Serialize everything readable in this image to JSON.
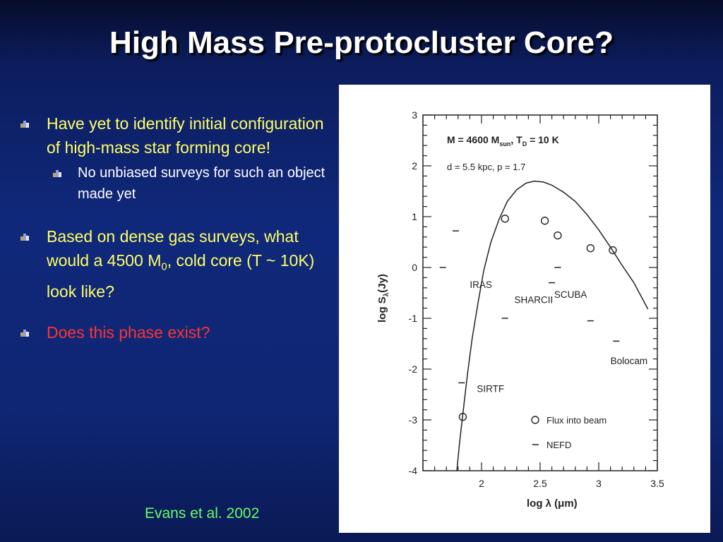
{
  "slide": {
    "title": "High Mass Pre-protocluster Core?",
    "bullets": [
      {
        "text": "Have yet to identify initial configuration of high-mass star forming core!",
        "level": 1,
        "color": "#ffff66"
      },
      {
        "text": "No unbiased surveys for such an object made yet",
        "level": 2,
        "color": "#ffffff"
      },
      {
        "text_before": "Based on dense gas surveys, what would a 4500 M",
        "subscript": "0",
        "text_after": ", cold core (T ~ 10K) look like?",
        "level": 1,
        "color": "#ffff66"
      },
      {
        "text": "Does this phase exist?",
        "level": 1,
        "color": "#ff3333"
      }
    ],
    "citation": "Evans et al. 2002",
    "citation_color": "#66ff66"
  },
  "chart_data": {
    "type": "scatter",
    "title_line1": {
      "m": "M = 4600 M",
      "m_sub": "sun",
      "t": ", T",
      "t_sub": "D",
      "rest": " = 10 K"
    },
    "title_line2": "d = 5.5 kpc, p = 1.7",
    "xlabel": "log λ (μm)",
    "ylabel": "log S",
    "ylabel_sub": "λ",
    "ylabel_unit": "(Jy)",
    "xlim": [
      1.5,
      3.5
    ],
    "ylim": [
      -4,
      3
    ],
    "xticks": [
      "2",
      "2.5",
      "3",
      "3.5"
    ],
    "yticks": [
      "3",
      "2",
      "1",
      "0",
      "-1",
      "-2",
      "-3",
      "-4"
    ],
    "series": [
      {
        "name": "Flux into beam",
        "marker": "circle",
        "points": [
          [
            1.84,
            -2.94
          ],
          [
            2.2,
            0.96
          ],
          [
            2.54,
            0.92
          ],
          [
            2.65,
            0.63
          ],
          [
            2.93,
            0.38
          ],
          [
            3.12,
            0.34
          ]
        ]
      },
      {
        "name": "NEFD",
        "marker": "dash",
        "points": [
          [
            1.67,
            0.0
          ],
          [
            1.78,
            0.72
          ],
          [
            2.2,
            -1.0
          ],
          [
            2.6,
            -0.3
          ],
          [
            2.65,
            0.0
          ],
          [
            2.93,
            -1.05
          ],
          [
            3.15,
            -1.45
          ],
          [
            1.83,
            -2.27
          ]
        ]
      }
    ],
    "model_curve": [
      [
        1.79,
        -4.0
      ],
      [
        1.81,
        -3.5
      ],
      [
        1.84,
        -2.9
      ],
      [
        1.88,
        -2.1
      ],
      [
        1.92,
        -1.4
      ],
      [
        1.97,
        -0.7
      ],
      [
        2.02,
        -0.05
      ],
      [
        2.08,
        0.5
      ],
      [
        2.15,
        0.95
      ],
      [
        2.22,
        1.3
      ],
      [
        2.3,
        1.53
      ],
      [
        2.38,
        1.66
      ],
      [
        2.45,
        1.7
      ],
      [
        2.53,
        1.68
      ],
      [
        2.6,
        1.62
      ],
      [
        2.7,
        1.48
      ],
      [
        2.8,
        1.3
      ],
      [
        2.9,
        1.04
      ],
      [
        3.0,
        0.74
      ],
      [
        3.1,
        0.4
      ],
      [
        3.2,
        0.04
      ],
      [
        3.3,
        -0.3
      ],
      [
        3.42,
        -0.82
      ]
    ],
    "annotations": [
      {
        "text": "IRAS",
        "x": 1.9,
        "y": -0.4
      },
      {
        "text": "SHARCII",
        "x": 2.28,
        "y": -0.7
      },
      {
        "text": "SCUBA",
        "x": 2.62,
        "y": -0.6
      },
      {
        "text": "Bolocam",
        "x": 3.1,
        "y": -1.9
      },
      {
        "text": "SIRTF",
        "x": 1.96,
        "y": -2.45
      }
    ],
    "legend": [
      "Flux into beam",
      "NEFD"
    ],
    "legend_position": "bottom-right"
  }
}
